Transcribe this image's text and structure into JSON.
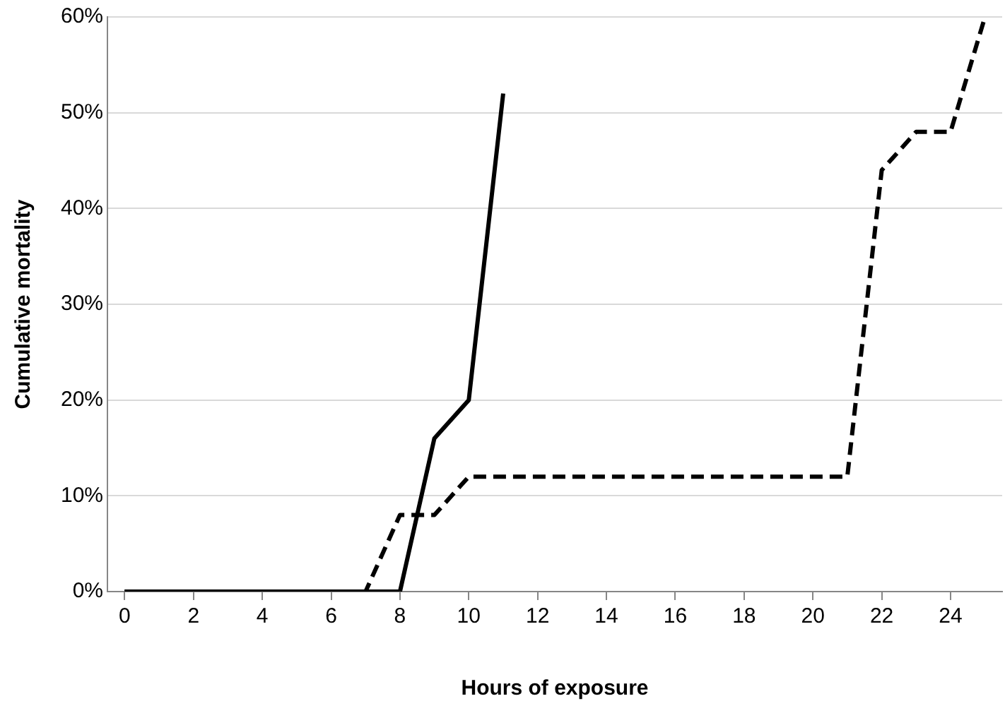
{
  "chart_data": {
    "type": "line",
    "xlabel": "Hours of exposure",
    "ylabel": "Cumulative mortality",
    "xlim": [
      -0.5,
      25.5
    ],
    "xticks": [
      0,
      2,
      4,
      6,
      8,
      10,
      12,
      14,
      16,
      18,
      20,
      22,
      24
    ],
    "ylim": [
      0,
      60
    ],
    "yticks": [
      {
        "value": 0,
        "label": "0%"
      },
      {
        "value": 10,
        "label": "10%"
      },
      {
        "value": 20,
        "label": "20%"
      },
      {
        "value": 30,
        "label": "30%"
      },
      {
        "value": 40,
        "label": "40%"
      },
      {
        "value": 50,
        "label": "50%"
      },
      {
        "value": 60,
        "label": "60%"
      }
    ],
    "grid": "y",
    "legend": false,
    "marker": "none",
    "series": [
      {
        "color": "#000000",
        "line_style": "solid",
        "x": [
          0,
          1,
          2,
          3,
          4,
          5,
          6,
          7,
          8,
          9,
          10,
          11
        ],
        "values": [
          0,
          0,
          0,
          0,
          0,
          0,
          0,
          0,
          0,
          16,
          20,
          52
        ]
      },
      {
        "color": "#000000",
        "line_style": "dashed",
        "x": [
          0,
          1,
          2,
          3,
          4,
          5,
          6,
          7,
          8,
          9,
          10,
          11,
          12,
          13,
          14,
          15,
          16,
          17,
          18,
          19,
          20,
          21,
          22,
          23,
          24,
          25
        ],
        "values": [
          0,
          0,
          0,
          0,
          0,
          0,
          0,
          0,
          8,
          8,
          12,
          12,
          12,
          12,
          12,
          12,
          12,
          12,
          12,
          12,
          12,
          12,
          44,
          48,
          48,
          60
        ]
      }
    ]
  }
}
